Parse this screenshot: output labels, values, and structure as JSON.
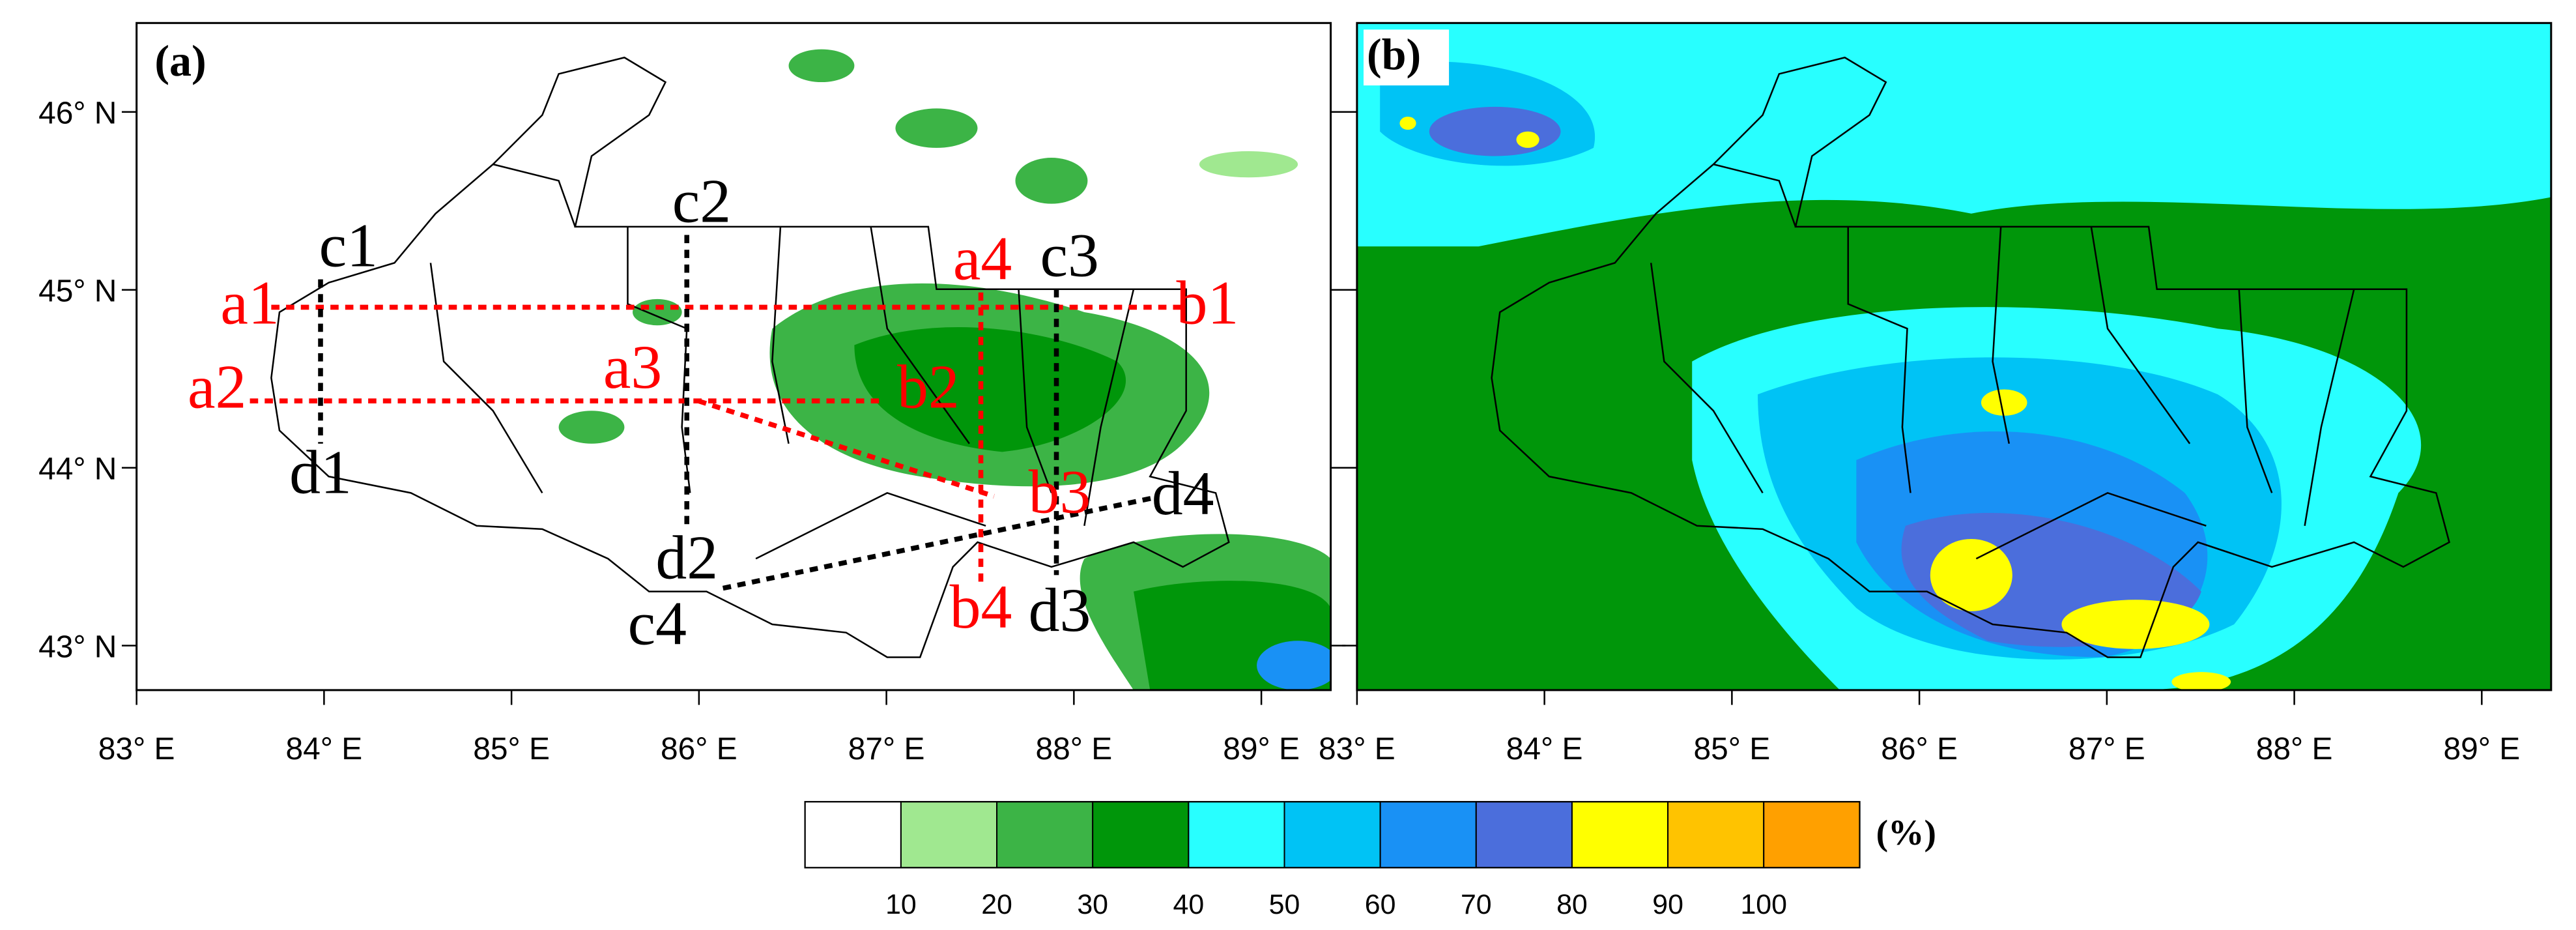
{
  "panels": [
    {
      "label": "(a)"
    },
    {
      "label": "(b)"
    }
  ],
  "lon_range": [
    83,
    89.37
  ],
  "lat_range": [
    42.75,
    46.5
  ],
  "lon_ticks": [
    {
      "value": 83,
      "label": "83° E"
    },
    {
      "value": 84,
      "label": "84° E"
    },
    {
      "value": 85,
      "label": "85° E"
    },
    {
      "value": 86,
      "label": "86° E"
    },
    {
      "value": 87,
      "label": "87° E"
    },
    {
      "value": 88,
      "label": "88° E"
    },
    {
      "value": 89,
      "label": "89° E"
    }
  ],
  "lat_ticks": [
    {
      "value": 46,
      "label": "46° N"
    },
    {
      "value": 45,
      "label": "45° N"
    },
    {
      "value": 44,
      "label": "44° N"
    },
    {
      "value": 43,
      "label": "43° N"
    }
  ],
  "transect_labels": {
    "red": [
      "a1",
      "b1",
      "a2",
      "b2",
      "a3",
      "b3",
      "a4",
      "b4"
    ],
    "black": [
      "c1",
      "d1",
      "c2",
      "d2",
      "c3",
      "d3",
      "c4",
      "d4"
    ]
  },
  "colorbar": {
    "colors": [
      "#ffffff",
      "#a0e890",
      "#3cb446",
      "#00960a",
      "#28ffff",
      "#00c3f5",
      "#1991f5",
      "#4b6edc",
      "#ffff00",
      "#ffc300",
      "#ffa000"
    ],
    "levels": [
      10,
      20,
      30,
      40,
      50,
      60,
      70,
      80,
      90,
      100
    ],
    "unit": "(%)"
  }
}
